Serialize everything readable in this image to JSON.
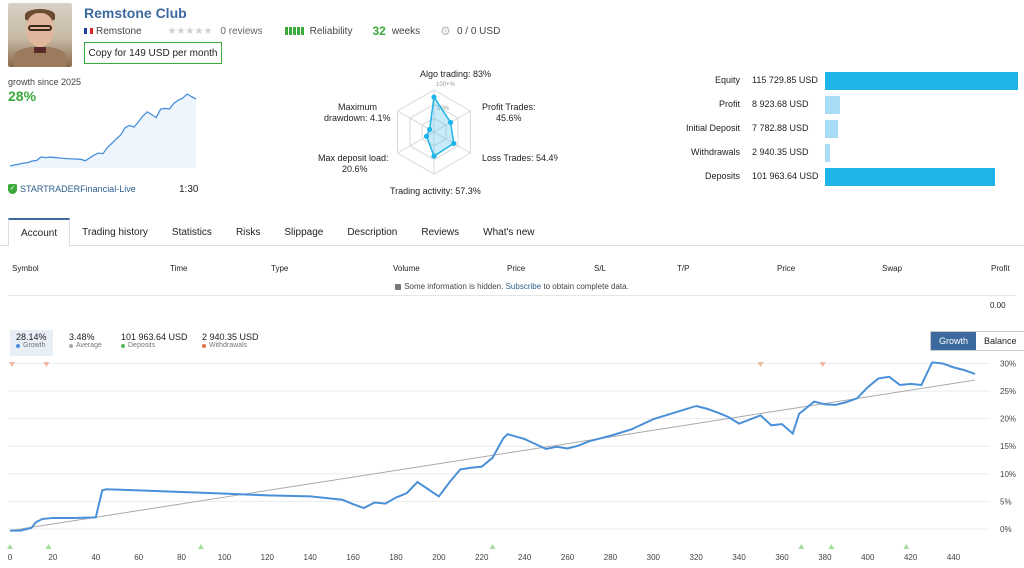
{
  "header": {
    "club_name": "Remstone Club",
    "author": "Remstone",
    "reviews": "0 reviews",
    "reliability_label": "Reliability",
    "weeks_num": "32",
    "weeks_label": "weeks",
    "subscribers": "0 / 0 USD",
    "copy_button": "Copy for 149 USD per month",
    "stars": "★★★★★"
  },
  "summary": {
    "growth_since": "growth since 2025",
    "growth_value": "28%",
    "broker": "STARTRADERFinancial-Live",
    "leverage": "1:30",
    "sparkline": [
      0.0,
      0.4,
      0.8,
      1.2,
      1.4,
      2.1,
      2.3,
      3.8,
      3.5,
      3.7,
      3.6,
      3.4,
      3.2,
      3.1,
      3.0,
      2.9,
      2.8,
      2.2,
      3.4,
      4.6,
      5.4,
      5.2,
      7.8,
      9.5,
      11.4,
      13.0,
      16.1,
      17.0,
      16.3,
      18.5,
      21.0,
      22.7,
      21.6,
      20.3,
      23.8,
      24.2,
      23.9,
      26.3,
      27.6,
      28.5,
      30.2,
      29.1,
      28.1
    ]
  },
  "radar": {
    "algo": "Algo trading: 83%",
    "profit_trades": "Profit Trades:",
    "profit_trades_val": "45.6%",
    "loss_trades": "Loss Trades: 54.4%",
    "trading_activity": "Trading activity: 57.3%",
    "max_deposit": "Max deposit load:",
    "max_deposit_val": "20.6%",
    "max_drawdown": "Maximum",
    "max_drawdown2": "drawdown: 4.1%",
    "tick_100": "100+%",
    "tick_50": "50%",
    "values": [
      83,
      45.6,
      54.4,
      57.3,
      20.6,
      4.1
    ]
  },
  "balances": [
    {
      "label": "Equity",
      "value": "115 729.85 USD",
      "amount": 115729.85,
      "color": "#1fb4e8"
    },
    {
      "label": "Profit",
      "value": "8 923.68 USD",
      "amount": 8923.68,
      "color": "#a8dcf6"
    },
    {
      "label": "Initial Deposit",
      "value": "7 782.88 USD",
      "amount": 7782.88,
      "color": "#a8dcf6"
    },
    {
      "label": "Withdrawals",
      "value": "2 940.35 USD",
      "amount": 2940.35,
      "color": "#a8dcf6"
    },
    {
      "label": "Deposits",
      "value": "101 963.64 USD",
      "amount": 101963.64,
      "color": "#1fb4e8"
    }
  ],
  "tabs": [
    "Account",
    "Trading history",
    "Statistics",
    "Risks",
    "Slippage",
    "Description",
    "Reviews",
    "What's new"
  ],
  "table": {
    "headers": [
      "Symbol",
      "Time",
      "Type",
      "Volume",
      "Price",
      "S/L",
      "T/P",
      "Price",
      "Swap",
      "Profit"
    ],
    "hidden_pre": "Some information is hidden.",
    "hidden_link": "Subscribe",
    "hidden_post": "to obtain complete data.",
    "total": "0.00"
  },
  "stats": [
    {
      "value": "28.14%",
      "label": "Growth",
      "color": "#4a90d9"
    },
    {
      "value": "3.48%",
      "label": "Average",
      "color": "#aaaaaa"
    },
    {
      "value": "101 963.64 USD",
      "label": "Deposits",
      "color": "#5cb85c"
    },
    {
      "value": "2 940.35 USD",
      "label": "Withdrawals",
      "color": "#e8734a"
    }
  ],
  "toggle": {
    "growth": "Growth",
    "balance": "Balance"
  },
  "chart_data": {
    "type": "line",
    "title": "",
    "xlabel": "",
    "ylabel": "",
    "xlim": [
      0,
      450
    ],
    "ylim": [
      -2,
      31
    ],
    "x_ticks": [
      0,
      20,
      40,
      60,
      80,
      100,
      120,
      140,
      160,
      180,
      200,
      220,
      240,
      260,
      280,
      300,
      320,
      340,
      360,
      380,
      400,
      420,
      440
    ],
    "y_ticks": [
      "0%",
      "5%",
      "10%",
      "15%",
      "20%",
      "25%",
      "30%"
    ],
    "y_tick_values": [
      0,
      5,
      10,
      15,
      20,
      25,
      30
    ],
    "series": [
      {
        "color": "#4a90d9",
        "x": [
          0,
          5,
          10,
          12,
          15,
          20,
          30,
          40,
          43,
          45,
          60,
          80,
          88,
          100,
          120,
          140,
          155,
          160,
          165,
          170,
          175,
          180,
          185,
          190,
          195,
          200,
          205,
          210,
          215,
          220,
          225,
          230,
          232,
          240,
          250,
          255,
          260,
          265,
          270,
          280,
          290,
          300,
          310,
          320,
          325,
          330,
          335,
          340,
          350,
          355,
          360,
          365,
          368,
          370,
          375,
          380,
          385,
          390,
          395,
          400,
          405,
          410,
          415,
          420,
          425,
          430,
          435,
          440,
          445,
          450
        ],
        "y": [
          -0.3,
          -0.3,
          0.2,
          1.2,
          1.8,
          2.0,
          2.0,
          2.1,
          7.0,
          7.2,
          7.0,
          6.7,
          6.6,
          6.4,
          6.1,
          5.9,
          5.3,
          4.5,
          3.8,
          4.8,
          4.6,
          5.7,
          6.5,
          8.5,
          7.2,
          5.9,
          8.5,
          10.8,
          11.1,
          11.3,
          12.9,
          16.4,
          17.2,
          16.3,
          14.5,
          14.9,
          14.6,
          15.1,
          15.9,
          16.9,
          18.1,
          19.9,
          21.1,
          22.3,
          21.8,
          21.1,
          20.3,
          19.1,
          20.6,
          18.8,
          19.0,
          17.3,
          20.9,
          21.5,
          23.1,
          22.6,
          22.5,
          23.0,
          23.7,
          25.7,
          27.3,
          27.6,
          26.1,
          26.3,
          26.1,
          30.2,
          30.0,
          29.3,
          28.8,
          28.1
        ]
      },
      {
        "color": "#aaaaaa",
        "x": [
          0,
          450
        ],
        "y": [
          -0.3,
          27.0
        ]
      }
    ],
    "grid": true,
    "top_markers_x": [
      1,
      17,
      350,
      379
    ],
    "bottom_markers_x": [
      0,
      18,
      89,
      225,
      369,
      383,
      418
    ]
  }
}
